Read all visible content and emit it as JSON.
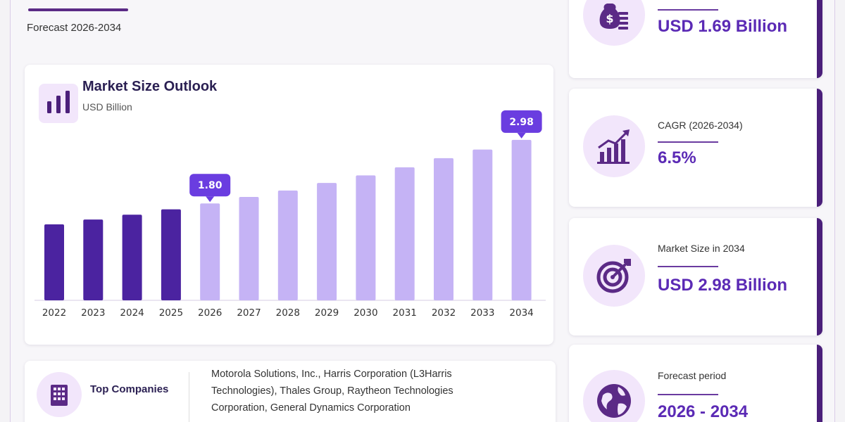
{
  "header": {
    "forecast_label": "Forecast 2026-2034"
  },
  "chart_data": {
    "type": "bar",
    "title": "Market Size Outlook",
    "ylabel": "USD Billion",
    "categories": [
      "2022",
      "2023",
      "2024",
      "2025",
      "2026",
      "2027",
      "2028",
      "2029",
      "2030",
      "2031",
      "2032",
      "2033",
      "2034"
    ],
    "values": [
      1.41,
      1.5,
      1.59,
      1.69,
      1.8,
      1.92,
      2.04,
      2.18,
      2.32,
      2.47,
      2.64,
      2.8,
      2.98
    ],
    "historical_color": "#4b23a0",
    "forecast_color": "#c5b3f5",
    "callout_color": "#6a3de0",
    "callouts": [
      {
        "category": "2026",
        "label": "1.80"
      },
      {
        "category": "2034",
        "label": "2.98"
      }
    ],
    "ylim": [
      0,
      3.2
    ]
  },
  "companies": {
    "heading": "Top Companies",
    "line1": "Motorola Solutions, Inc., Harris Corporation (L3Harris",
    "line2": "Technologies), Thales Group, Raytheon Technologies",
    "line3": "Corporation, General Dynamics Corporation",
    "icon": "building-icon"
  },
  "stats": [
    {
      "label": "",
      "value": "USD 1.69 Billion",
      "icon": "money-bag-icon"
    },
    {
      "label": "CAGR (2026-2034)",
      "value": "6.5%",
      "icon": "growth-chart-icon"
    },
    {
      "label": "Market Size in 2034",
      "value": "USD 2.98 Billion",
      "icon": "target-icon"
    },
    {
      "label": "Forecast period",
      "value": "2026 - 2034",
      "icon": "globe-icon"
    }
  ]
}
